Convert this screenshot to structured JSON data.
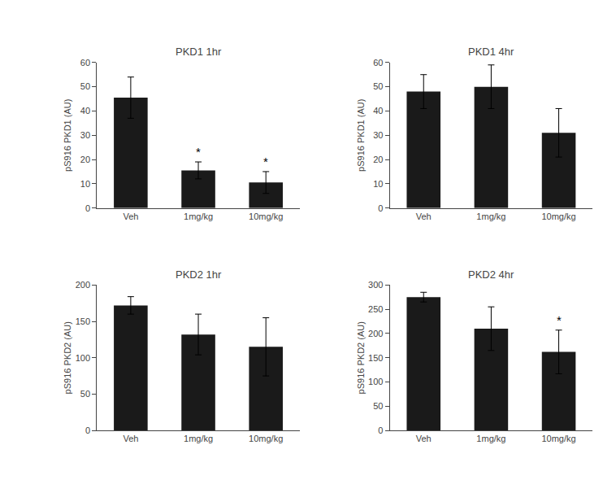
{
  "chart_data": [
    {
      "type": "bar",
      "title": "PKD1 1hr",
      "categories": [
        "Veh",
        "1mg/kg",
        "10mg/kg"
      ],
      "values": [
        45.5,
        15.5,
        10.5
      ],
      "errors": [
        8.5,
        3.5,
        4.5
      ],
      "color": "#1a1a1a",
      "ylabel": "pS916 PKD1 (AU)",
      "ylim": [
        0,
        60
      ],
      "yticks": [
        0,
        10,
        20,
        30,
        40,
        50,
        60
      ],
      "grid": false,
      "annotations": [
        {
          "category": "1mg/kg",
          "text": "*"
        },
        {
          "category": "10mg/kg",
          "text": "*"
        }
      ]
    },
    {
      "type": "bar",
      "title": "PKD1 4hr",
      "categories": [
        "Veh",
        "1mg/kg",
        "10mg/kg"
      ],
      "values": [
        48,
        50,
        31
      ],
      "errors": [
        7,
        9,
        10
      ],
      "color": "#1a1a1a",
      "ylabel": "pS916 PKD1 (AU)",
      "ylim": [
        0,
        60
      ],
      "yticks": [
        0,
        10,
        20,
        30,
        40,
        50,
        60
      ],
      "grid": false
    },
    {
      "type": "bar",
      "title": "PKD2 1hr",
      "categories": [
        "Veh",
        "1mg/kg",
        "10mg/kg"
      ],
      "values": [
        172,
        132,
        115
      ],
      "errors": [
        12,
        28,
        40
      ],
      "color": "#1a1a1a",
      "ylabel": "pS916 PKD2 (AU)",
      "ylim": [
        0,
        200
      ],
      "yticks": [
        0,
        50,
        100,
        150,
        200
      ],
      "grid": false
    },
    {
      "type": "bar",
      "title": "PKD2 4hr",
      "categories": [
        "Veh",
        "1mg/kg",
        "10mg/kg"
      ],
      "values": [
        275,
        210,
        162
      ],
      "errors": [
        10,
        45,
        45
      ],
      "color": "#1a1a1a",
      "ylabel": "pS916 PKD2 (AU)",
      "ylim": [
        0,
        300
      ],
      "yticks": [
        0,
        50,
        100,
        150,
        200,
        250,
        300
      ],
      "grid": false,
      "annotations": [
        {
          "category": "10mg/kg",
          "text": "*"
        }
      ]
    }
  ]
}
